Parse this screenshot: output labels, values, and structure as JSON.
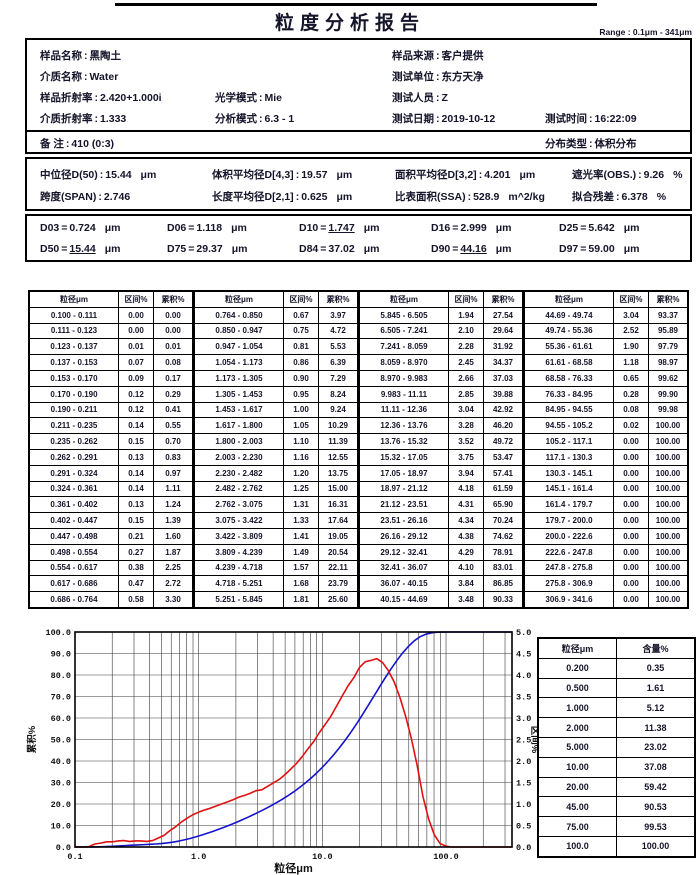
{
  "report": {
    "title": "粒度分析报告",
    "range_label": "Range : 0.1μm - 341μm"
  },
  "sample_info": {
    "fields": [
      {
        "label": "样品名称",
        "value": "黑陶土"
      },
      {
        "label": "介质名称",
        "value": "Water"
      },
      {
        "label": "样品折射率",
        "value": "2.420+1.000i"
      },
      {
        "label": "光学模式",
        "value": "Mie"
      },
      {
        "label": "介质折射率",
        "value": "1.333"
      },
      {
        "label": "分析模式",
        "value": "6.3 - 1"
      },
      {
        "label": "样品来源",
        "value": "客户提供"
      },
      {
        "label": "测试单位",
        "value": "东方天净"
      },
      {
        "label": "测试人员",
        "value": "Z"
      },
      {
        "label": "测试日期",
        "value": "2019-10-12"
      },
      {
        "label": "测试时间",
        "value": "16:22:09"
      },
      {
        "label": "备  注",
        "value": "410  (0:3)"
      },
      {
        "label": "分布类型",
        "value": "体积分布"
      }
    ]
  },
  "stats": {
    "rows": [
      [
        {
          "label": "中位径D(50)",
          "value": "15.44",
          "unit": "μm"
        },
        {
          "label": "体积平均径D[4,3]",
          "value": "19.57",
          "unit": "μm"
        },
        {
          "label": "面积平均径D[3,2]",
          "value": "4.201",
          "unit": "μm"
        },
        {
          "label": "遮光率(OBS.)",
          "value": "9.26",
          "unit": "%"
        }
      ],
      [
        {
          "label": "跨度(SPAN)",
          "value": "2.746",
          "unit": ""
        },
        {
          "label": "长度平均径D[2,1]",
          "value": "0.625",
          "unit": "μm"
        },
        {
          "label": "比表面积(SSA)",
          "value": "528.9",
          "unit": "m^2/kg"
        },
        {
          "label": "拟合残差",
          "value": "6.378",
          "unit": "%"
        }
      ]
    ]
  },
  "d_values": {
    "rows": [
      [
        {
          "name": "D03",
          "value": "0.724",
          "unit": "μm",
          "underline": false
        },
        {
          "name": "D06",
          "value": "1.118",
          "unit": "μm",
          "underline": false
        },
        {
          "name": "D10",
          "value": "1.747",
          "unit": "μm",
          "underline": true
        },
        {
          "name": "D16",
          "value": "2.999",
          "unit": "μm",
          "underline": false
        },
        {
          "name": "D25",
          "value": "5.642",
          "unit": "μm",
          "underline": false
        }
      ],
      [
        {
          "name": "D50",
          "value": "15.44",
          "unit": "μm",
          "underline": true
        },
        {
          "name": "D75",
          "value": "29.37",
          "unit": "μm",
          "underline": false
        },
        {
          "name": "D84",
          "value": "37.02",
          "unit": "μm",
          "underline": false
        },
        {
          "name": "D90",
          "value": "44.16",
          "unit": "μm",
          "underline": true
        },
        {
          "name": "D97",
          "value": "59.00",
          "unit": "μm",
          "underline": false
        }
      ]
    ]
  },
  "main_table": {
    "headers": [
      "粒径μm",
      "区间%",
      "累积%"
    ],
    "groups": [
      [
        [
          "0.100 - 0.111",
          "0.00",
          "0.00"
        ],
        [
          "0.111 - 0.123",
          "0.00",
          "0.00"
        ],
        [
          "0.123 - 0.137",
          "0.01",
          "0.01"
        ],
        [
          "0.137 - 0.153",
          "0.07",
          "0.08"
        ],
        [
          "0.153 - 0.170",
          "0.09",
          "0.17"
        ],
        [
          "0.170 - 0.190",
          "0.12",
          "0.29"
        ],
        [
          "0.190 - 0.211",
          "0.12",
          "0.41"
        ],
        [
          "0.211 - 0.235",
          "0.14",
          "0.55"
        ],
        [
          "0.235 - 0.262",
          "0.15",
          "0.70"
        ],
        [
          "0.262 - 0.291",
          "0.13",
          "0.83"
        ],
        [
          "0.291 - 0.324",
          "0.14",
          "0.97"
        ],
        [
          "0.324 - 0.361",
          "0.14",
          "1.11"
        ],
        [
          "0.361 - 0.402",
          "0.13",
          "1.24"
        ],
        [
          "0.402 - 0.447",
          "0.15",
          "1.39"
        ],
        [
          "0.447 - 0.498",
          "0.21",
          "1.60"
        ],
        [
          "0.498 - 0.554",
          "0.27",
          "1.87"
        ],
        [
          "0.554 - 0.617",
          "0.38",
          "2.25"
        ],
        [
          "0.617 - 0.686",
          "0.47",
          "2.72"
        ],
        [
          "0.686 - 0.764",
          "0.58",
          "3.30"
        ]
      ],
      [
        [
          "0.764 - 0.850",
          "0.67",
          "3.97"
        ],
        [
          "0.850 - 0.947",
          "0.75",
          "4.72"
        ],
        [
          "0.947 - 1.054",
          "0.81",
          "5.53"
        ],
        [
          "1.054 - 1.173",
          "0.86",
          "6.39"
        ],
        [
          "1.173 - 1.305",
          "0.90",
          "7.29"
        ],
        [
          "1.305 - 1.453",
          "0.95",
          "8.24"
        ],
        [
          "1.453 - 1.617",
          "1.00",
          "9.24"
        ],
        [
          "1.617 - 1.800",
          "1.05",
          "10.29"
        ],
        [
          "1.800 - 2.003",
          "1.10",
          "11.39"
        ],
        [
          "2.003 - 2.230",
          "1.16",
          "12.55"
        ],
        [
          "2.230 - 2.482",
          "1.20",
          "13.75"
        ],
        [
          "2.482 - 2.762",
          "1.25",
          "15.00"
        ],
        [
          "2.762 - 3.075",
          "1.31",
          "16.31"
        ],
        [
          "3.075 - 3.422",
          "1.33",
          "17.64"
        ],
        [
          "3.422 - 3.809",
          "1.41",
          "19.05"
        ],
        [
          "3.809 - 4.239",
          "1.49",
          "20.54"
        ],
        [
          "4.239 - 4.718",
          "1.57",
          "22.11"
        ],
        [
          "4.718 - 5.251",
          "1.68",
          "23.79"
        ],
        [
          "5.251 - 5.845",
          "1.81",
          "25.60"
        ]
      ],
      [
        [
          "5.845 - 6.505",
          "1.94",
          "27.54"
        ],
        [
          "6.505 - 7.241",
          "2.10",
          "29.64"
        ],
        [
          "7.241 - 8.059",
          "2.28",
          "31.92"
        ],
        [
          "8.059 - 8.970",
          "2.45",
          "34.37"
        ],
        [
          "8.970 - 9.983",
          "2.66",
          "37.03"
        ],
        [
          "9.983 - 11.11",
          "2.85",
          "39.88"
        ],
        [
          "11.11 - 12.36",
          "3.04",
          "42.92"
        ],
        [
          "12.36 - 13.76",
          "3.28",
          "46.20"
        ],
        [
          "13.76 - 15.32",
          "3.52",
          "49.72"
        ],
        [
          "15.32 - 17.05",
          "3.75",
          "53.47"
        ],
        [
          "17.05 - 18.97",
          "3.94",
          "57.41"
        ],
        [
          "18.97 - 21.12",
          "4.18",
          "61.59"
        ],
        [
          "21.12 - 23.51",
          "4.31",
          "65.90"
        ],
        [
          "23.51 - 26.16",
          "4.34",
          "70.24"
        ],
        [
          "26.16 - 29.12",
          "4.38",
          "74.62"
        ],
        [
          "29.12 - 32.41",
          "4.29",
          "78.91"
        ],
        [
          "32.41 - 36.07",
          "4.10",
          "83.01"
        ],
        [
          "36.07 - 40.15",
          "3.84",
          "86.85"
        ],
        [
          "40.15 - 44.69",
          "3.48",
          "90.33"
        ]
      ],
      [
        [
          "44.69 - 49.74",
          "3.04",
          "93.37"
        ],
        [
          "49.74 - 55.36",
          "2.52",
          "95.89"
        ],
        [
          "55.36 - 61.61",
          "1.90",
          "97.79"
        ],
        [
          "61.61 - 68.58",
          "1.18",
          "98.97"
        ],
        [
          "68.58 - 76.33",
          "0.65",
          "99.62"
        ],
        [
          "76.33 - 84.95",
          "0.28",
          "99.90"
        ],
        [
          "84.95 - 94.55",
          "0.08",
          "99.98"
        ],
        [
          "94.55 - 105.2",
          "0.02",
          "100.00"
        ],
        [
          "105.2 - 117.1",
          "0.00",
          "100.00"
        ],
        [
          "117.1 - 130.3",
          "0.00",
          "100.00"
        ],
        [
          "130.3 - 145.1",
          "0.00",
          "100.00"
        ],
        [
          "145.1 - 161.4",
          "0.00",
          "100.00"
        ],
        [
          "161.4 - 179.7",
          "0.00",
          "100.00"
        ],
        [
          "179.7 - 200.0",
          "0.00",
          "100.00"
        ],
        [
          "200.0 - 222.6",
          "0.00",
          "100.00"
        ],
        [
          "222.6 - 247.8",
          "0.00",
          "100.00"
        ],
        [
          "247.8 - 275.8",
          "0.00",
          "100.00"
        ],
        [
          "275.8 - 306.9",
          "0.00",
          "100.00"
        ],
        [
          "306.9 - 341.6",
          "0.00",
          "100.00"
        ]
      ]
    ]
  },
  "summary_table": {
    "headers": [
      "粒径μm",
      "含量%"
    ],
    "rows": [
      [
        "0.200",
        "0.35"
      ],
      [
        "0.500",
        "1.61"
      ],
      [
        "1.000",
        "5.12"
      ],
      [
        "2.000",
        "11.38"
      ],
      [
        "5.000",
        "23.02"
      ],
      [
        "10.00",
        "37.08"
      ],
      [
        "20.00",
        "59.42"
      ],
      [
        "45.00",
        "90.53"
      ],
      [
        "75.00",
        "99.53"
      ],
      [
        "100.0",
        "100.00"
      ]
    ]
  },
  "chart_data": {
    "type": "line",
    "x_scale": "log",
    "xlim": [
      0.1,
      341.6
    ],
    "ylim_left": [
      0,
      100
    ],
    "ylim_right": [
      0,
      5
    ],
    "ytick_step_left": 10,
    "ytick_step_right": 0.5,
    "xtick_values": [
      0.1,
      1,
      10,
      100
    ],
    "xtick_labels": [
      "0.1",
      "1.0",
      "10.0",
      "100.0"
    ],
    "xlabel": "粒径μm",
    "ylabel_left": "累积%",
    "ylabel_right": "区间%",
    "grid": true,
    "edges": [
      0.1,
      0.111,
      0.123,
      0.137,
      0.153,
      0.17,
      0.19,
      0.211,
      0.235,
      0.262,
      0.291,
      0.324,
      0.361,
      0.402,
      0.447,
      0.498,
      0.554,
      0.617,
      0.686,
      0.764,
      0.85,
      0.947,
      1.054,
      1.173,
      1.305,
      1.453,
      1.617,
      1.8,
      2.003,
      2.23,
      2.482,
      2.762,
      3.075,
      3.422,
      3.809,
      4.239,
      4.718,
      5.251,
      5.845,
      6.505,
      7.241,
      8.059,
      8.97,
      9.983,
      11.11,
      12.36,
      13.76,
      15.32,
      17.05,
      18.97,
      21.12,
      23.51,
      26.16,
      29.12,
      32.41,
      36.07,
      40.15,
      44.69,
      49.74,
      55.36,
      61.61,
      68.58,
      76.33,
      84.95,
      94.55,
      105.2,
      117.1,
      130.3,
      145.1,
      161.4,
      179.7,
      200.0,
      222.6,
      247.8,
      275.8,
      306.9,
      341.6
    ],
    "series": [
      {
        "name": "累积%",
        "axis": "left",
        "color": "#1414cc",
        "values": [
          0.0,
          0.0,
          0.01,
          0.08,
          0.17,
          0.29,
          0.41,
          0.55,
          0.7,
          0.83,
          0.97,
          1.11,
          1.24,
          1.39,
          1.6,
          1.87,
          2.25,
          2.72,
          3.3,
          3.97,
          4.72,
          5.53,
          6.39,
          7.29,
          8.24,
          9.24,
          10.29,
          11.39,
          12.55,
          13.75,
          15.0,
          16.31,
          17.64,
          19.05,
          20.54,
          22.11,
          23.79,
          25.6,
          27.54,
          29.64,
          31.92,
          34.37,
          37.03,
          39.88,
          42.92,
          46.2,
          49.72,
          53.47,
          57.41,
          61.59,
          65.9,
          70.24,
          74.62,
          78.91,
          83.01,
          86.85,
          90.33,
          93.37,
          95.89,
          97.79,
          98.97,
          99.62,
          99.9,
          99.98,
          100.0,
          100.0,
          100.0,
          100.0,
          100.0,
          100.0,
          100.0,
          100.0,
          100.0,
          100.0,
          100.0,
          100.0
        ]
      },
      {
        "name": "区间%",
        "axis": "right",
        "color": "#e01010",
        "values": [
          0.0,
          0.0,
          0.01,
          0.07,
          0.09,
          0.12,
          0.12,
          0.14,
          0.15,
          0.13,
          0.14,
          0.14,
          0.13,
          0.15,
          0.21,
          0.27,
          0.38,
          0.47,
          0.58,
          0.67,
          0.75,
          0.81,
          0.86,
          0.9,
          0.95,
          1.0,
          1.05,
          1.1,
          1.16,
          1.2,
          1.25,
          1.31,
          1.33,
          1.41,
          1.49,
          1.57,
          1.68,
          1.81,
          1.94,
          2.1,
          2.28,
          2.45,
          2.66,
          2.85,
          3.04,
          3.28,
          3.52,
          3.75,
          3.94,
          4.18,
          4.31,
          4.34,
          4.38,
          4.29,
          4.1,
          3.84,
          3.48,
          3.04,
          2.52,
          1.9,
          1.18,
          0.65,
          0.28,
          0.08,
          0.02,
          0.0,
          0.0,
          0.0,
          0.0,
          0.0,
          0.0,
          0.0,
          0.0,
          0.0,
          0.0,
          0.0
        ]
      }
    ]
  }
}
